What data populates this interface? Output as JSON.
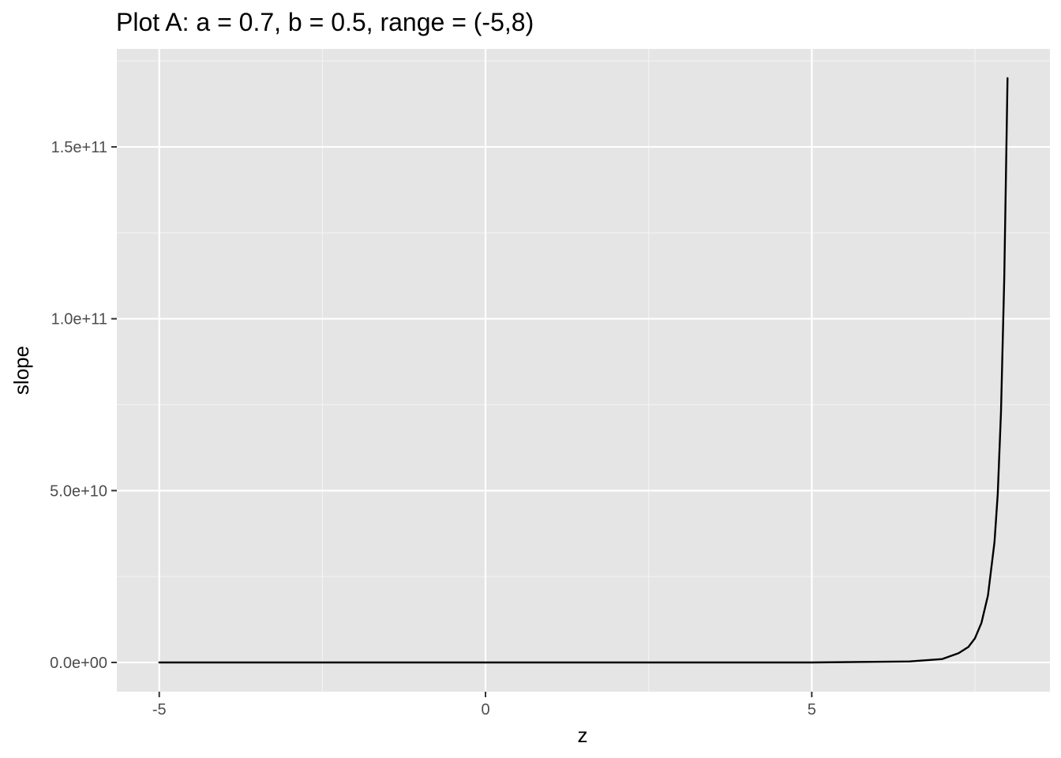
{
  "chart_data": {
    "type": "line",
    "title": "Plot A: a = 0.7, b = 0.5, range = (-5,8)",
    "xlabel": "z",
    "ylabel": "slope",
    "xlim": [
      -5.65,
      8.65
    ],
    "ylim": [
      -8500000000.0,
      178500000000.0
    ],
    "x_ticks": [
      {
        "value": -5,
        "label": "-5"
      },
      {
        "value": 0,
        "label": "0"
      },
      {
        "value": 5,
        "label": "5"
      }
    ],
    "x_minor_ticks": [
      -2.5,
      2.5,
      7.5
    ],
    "y_ticks": [
      {
        "value": 0,
        "label": "0.0e+00"
      },
      {
        "value": 50000000000,
        "label": "5.0e+10"
      },
      {
        "value": 100000000000,
        "label": "1.0e+11"
      },
      {
        "value": 150000000000,
        "label": "1.5e+11"
      }
    ],
    "y_minor_ticks": [
      25000000000,
      75000000000,
      125000000000,
      175000000000
    ],
    "grid": true,
    "series": [
      {
        "color": "#000000",
        "x": [
          -5,
          0,
          5,
          6.5,
          7.0,
          7.25,
          7.4,
          7.5,
          7.6,
          7.7,
          7.8,
          7.85,
          7.9,
          7.95,
          8.0
        ],
        "y": [
          0,
          0,
          0,
          300000000,
          1000000000,
          2700000000,
          4500000000,
          7000000000,
          11500000000,
          19500000000,
          35000000000,
          49000000000,
          73000000000,
          112000000000,
          170000000000
        ]
      }
    ]
  }
}
